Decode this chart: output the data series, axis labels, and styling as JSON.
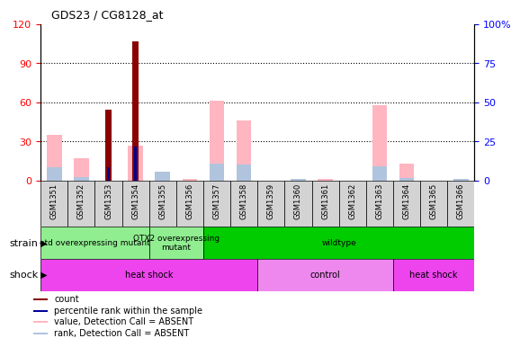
{
  "title": "GDS23 / CG8128_at",
  "samples": [
    "GSM1351",
    "GSM1352",
    "GSM1353",
    "GSM1354",
    "GSM1355",
    "GSM1356",
    "GSM1357",
    "GSM1358",
    "GSM1359",
    "GSM1360",
    "GSM1361",
    "GSM1362",
    "GSM1363",
    "GSM1364",
    "GSM1365",
    "GSM1366"
  ],
  "count_values": [
    0,
    0,
    54,
    107,
    0,
    0,
    0,
    0,
    0,
    0,
    0,
    0,
    0,
    0,
    0,
    0
  ],
  "percentile_values": [
    0,
    0,
    10,
    26,
    0,
    0,
    0,
    0,
    0,
    0,
    0,
    0,
    0,
    0,
    0,
    0
  ],
  "absent_value_values": [
    35,
    17,
    0,
    27,
    4,
    1,
    61,
    46,
    0,
    0,
    1,
    0,
    58,
    13,
    0,
    0
  ],
  "absent_rank_values": [
    10,
    3,
    0,
    0,
    7,
    0,
    13,
    12,
    0,
    1,
    0,
    0,
    11,
    2,
    0,
    1
  ],
  "ylim_left": [
    0,
    120
  ],
  "ylim_right": [
    0,
    100
  ],
  "yticks_left": [
    0,
    30,
    60,
    90,
    120
  ],
  "yticks_right": [
    0,
    25,
    50,
    75,
    100
  ],
  "count_color": "#8B0000",
  "percentile_color": "#00008B",
  "absent_value_color": "#FFB6C1",
  "absent_rank_color": "#B0C4DE",
  "sample_box_color": "#D3D3D3",
  "strain_boundaries": [
    {
      "label": "otd overexpressing mutant",
      "start": 0,
      "end": 4,
      "color": "#90EE90"
    },
    {
      "label": "OTX2 overexpressing\nmutant",
      "start": 4,
      "end": 6,
      "color": "#90EE90"
    },
    {
      "label": "wildtype",
      "start": 6,
      "end": 16,
      "color": "#00CC00"
    }
  ],
  "shock_boundaries": [
    {
      "label": "heat shock",
      "start": 0,
      "end": 8,
      "color": "#EE44EE"
    },
    {
      "label": "control",
      "start": 8,
      "end": 13,
      "color": "#EE88EE"
    },
    {
      "label": "heat shock",
      "start": 13,
      "end": 16,
      "color": "#EE44EE"
    }
  ],
  "legend_items": [
    {
      "label": "count",
      "color": "#8B0000"
    },
    {
      "label": "percentile rank within the sample",
      "color": "#000099"
    },
    {
      "label": "value, Detection Call = ABSENT",
      "color": "#FFB6C1"
    },
    {
      "label": "rank, Detection Call = ABSENT",
      "color": "#B0C4DE"
    }
  ]
}
